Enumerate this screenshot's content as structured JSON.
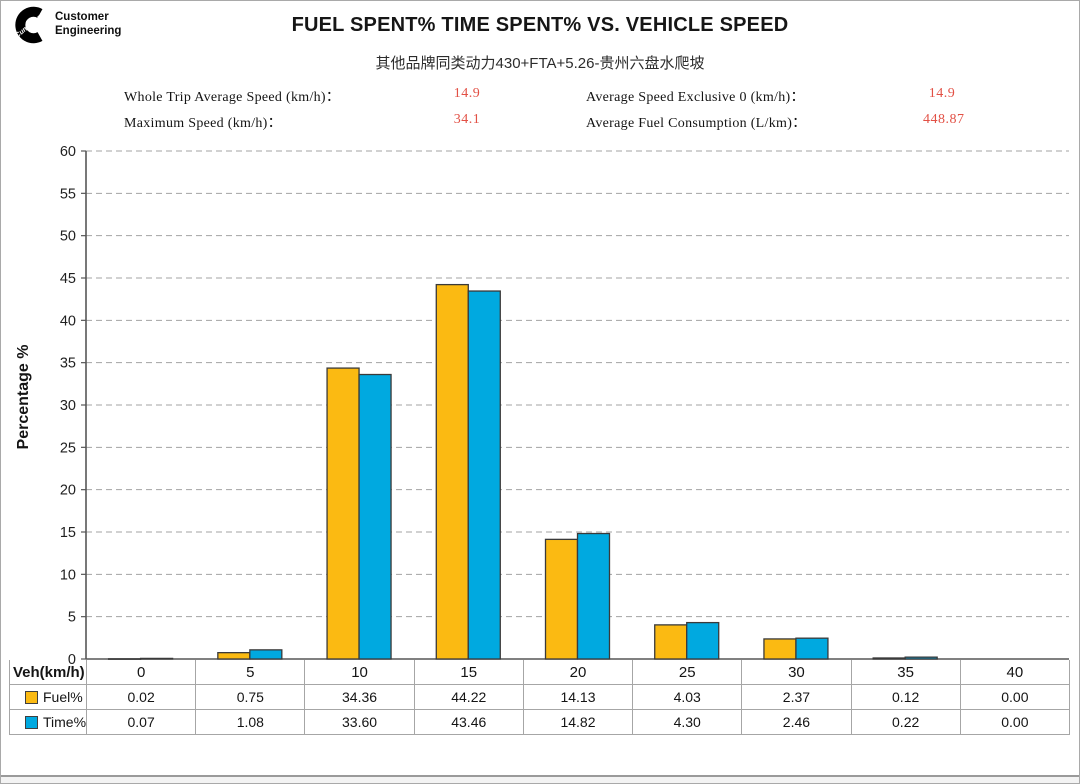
{
  "logo": {
    "brand": "Cummins",
    "line1": "Customer",
    "line2": "Engineering"
  },
  "header": {
    "title": "FUEL SPENT% TIME SPENT% VS. VEHICLE SPEED",
    "subtitle": "其他品牌同类动力430+FTA+5.26-贵州六盘水爬坡",
    "stats": [
      {
        "label": "Whole Trip Average Speed (km/h)：",
        "value": "14.9"
      },
      {
        "label": "Average Speed Exclusive 0 (km/h)：",
        "value": "14.9"
      },
      {
        "label": "Maximum Speed (km/h)：",
        "value": "34.1"
      },
      {
        "label": "Average Fuel Consumption (L/km)：",
        "value": "448.87"
      }
    ],
    "value_color": "#e25045"
  },
  "chart_data": {
    "type": "bar",
    "title": "FUEL SPENT% TIME SPENT% VS. VEHICLE SPEED",
    "subtitle": "其他品牌同类动力430+FTA+5.26-贵州六盘水爬坡",
    "xlabel": "Veh(km/h)",
    "ylabel": "Percentage %",
    "ylim": [
      0,
      60
    ],
    "ytick_step": 5,
    "grid": "horizontal-dashed",
    "legend_position": "data-table-left",
    "categories": [
      "0",
      "5",
      "10",
      "15",
      "20",
      "25",
      "30",
      "35",
      "40"
    ],
    "series": [
      {
        "name": "Fuel%",
        "color": "#FBBA12",
        "values": [
          0.02,
          0.75,
          34.36,
          44.22,
          14.13,
          4.03,
          2.37,
          0.12,
          0.0
        ]
      },
      {
        "name": "Time%",
        "color": "#00A9E0",
        "values": [
          0.07,
          1.08,
          33.6,
          43.46,
          14.82,
          4.3,
          2.46,
          0.22,
          0.0
        ]
      }
    ]
  }
}
